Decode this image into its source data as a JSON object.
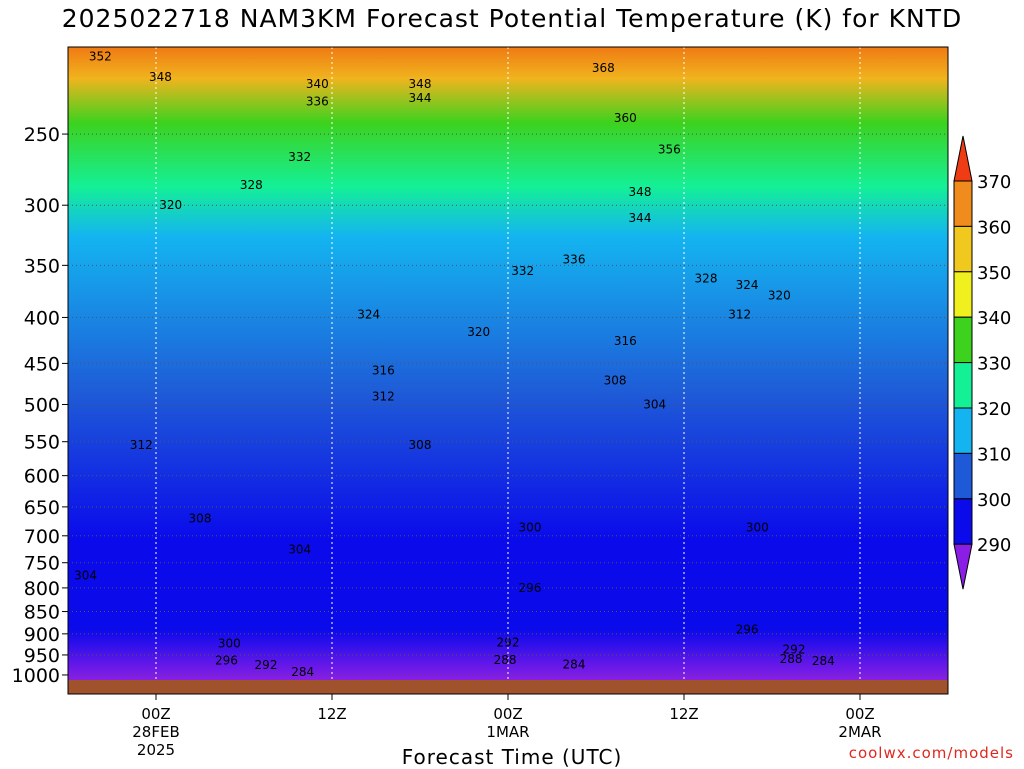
{
  "chart_data": {
    "type": "heatmap",
    "title": "2025022718 NAM3KM Forecast Potential Temperature (K) for KNTD",
    "xlabel": "Forecast Time (UTC)",
    "ylabel": "",
    "credit": "coolwx.com/models",
    "y_axis": {
      "scale": "log",
      "ticks": [
        250,
        300,
        350,
        400,
        450,
        500,
        550,
        600,
        650,
        700,
        750,
        800,
        850,
        900,
        950,
        1000
      ],
      "top": 200,
      "bottom": 1013
    },
    "x_axis": {
      "range_hours": [
        -6,
        54
      ],
      "ticks": [
        {
          "hour": 0,
          "label": "00Z",
          "sub1": "28FEB",
          "sub2": "2025"
        },
        {
          "hour": 12,
          "label": "12Z",
          "sub1": "",
          "sub2": ""
        },
        {
          "hour": 24,
          "label": "00Z",
          "sub1": "1MAR",
          "sub2": ""
        },
        {
          "hour": 36,
          "label": "12Z",
          "sub1": "",
          "sub2": ""
        },
        {
          "hour": 48,
          "label": "00Z",
          "sub1": "2MAR",
          "sub2": ""
        }
      ]
    },
    "colorbar": {
      "labels": [
        290,
        300,
        310,
        320,
        330,
        340,
        350,
        360,
        370
      ],
      "colors": [
        "#8a1ee6",
        "#0a0aeb",
        "#1e5ad7",
        "#14b4f0",
        "#14f096",
        "#3cd21e",
        "#f0f01e",
        "#f0c81e",
        "#f08c1e",
        "#f03c14"
      ]
    },
    "contour_labels": [
      {
        "t": -3.8,
        "p": 205,
        "v": "352"
      },
      {
        "t": 0.3,
        "p": 216,
        "v": "348"
      },
      {
        "t": 11,
        "p": 220,
        "v": "340"
      },
      {
        "t": 11,
        "p": 230,
        "v": "336"
      },
      {
        "t": 18,
        "p": 220,
        "v": "348"
      },
      {
        "t": 18,
        "p": 228,
        "v": "344"
      },
      {
        "t": 30.5,
        "p": 211,
        "v": "368"
      },
      {
        "t": 32,
        "p": 240,
        "v": "360"
      },
      {
        "t": 35,
        "p": 260,
        "v": "356"
      },
      {
        "t": 9.8,
        "p": 265,
        "v": "332"
      },
      {
        "t": 6.5,
        "p": 285,
        "v": "328"
      },
      {
        "t": 1,
        "p": 300,
        "v": "320"
      },
      {
        "t": 33,
        "p": 290,
        "v": "348"
      },
      {
        "t": 33,
        "p": 310,
        "v": "344"
      },
      {
        "t": 28.5,
        "p": 345,
        "v": "336"
      },
      {
        "t": 25,
        "p": 355,
        "v": "332"
      },
      {
        "t": 37.5,
        "p": 362,
        "v": "328"
      },
      {
        "t": 40.3,
        "p": 368,
        "v": "324"
      },
      {
        "t": 42.5,
        "p": 378,
        "v": "320"
      },
      {
        "t": 39.8,
        "p": 397,
        "v": "312"
      },
      {
        "t": 14.5,
        "p": 397,
        "v": "324"
      },
      {
        "t": 22,
        "p": 415,
        "v": "320"
      },
      {
        "t": 32,
        "p": 425,
        "v": "316"
      },
      {
        "t": 15.5,
        "p": 458,
        "v": "316"
      },
      {
        "t": 31.3,
        "p": 470,
        "v": "308"
      },
      {
        "t": 15.5,
        "p": 490,
        "v": "312"
      },
      {
        "t": 34,
        "p": 500,
        "v": "304"
      },
      {
        "t": -1,
        "p": 555,
        "v": "312"
      },
      {
        "t": 18,
        "p": 555,
        "v": "308"
      },
      {
        "t": 3,
        "p": 670,
        "v": "308"
      },
      {
        "t": 25.5,
        "p": 685,
        "v": "300"
      },
      {
        "t": 41,
        "p": 685,
        "v": "300"
      },
      {
        "t": 9.8,
        "p": 725,
        "v": "304"
      },
      {
        "t": -4.8,
        "p": 775,
        "v": "304"
      },
      {
        "t": 25.5,
        "p": 800,
        "v": "296"
      },
      {
        "t": 40.3,
        "p": 890,
        "v": "296"
      },
      {
        "t": 5,
        "p": 922,
        "v": "300"
      },
      {
        "t": 24,
        "p": 920,
        "v": "292"
      },
      {
        "t": 43.5,
        "p": 937,
        "v": "292"
      },
      {
        "t": 4.8,
        "p": 963,
        "v": "296"
      },
      {
        "t": 7.5,
        "p": 975,
        "v": "292"
      },
      {
        "t": 23.8,
        "p": 962,
        "v": "288"
      },
      {
        "t": 43.3,
        "p": 960,
        "v": "288"
      },
      {
        "t": 45.5,
        "p": 965,
        "v": "284"
      },
      {
        "t": 28.5,
        "p": 973,
        "v": "284"
      },
      {
        "t": 10,
        "p": 992,
        "v": "284"
      }
    ]
  }
}
